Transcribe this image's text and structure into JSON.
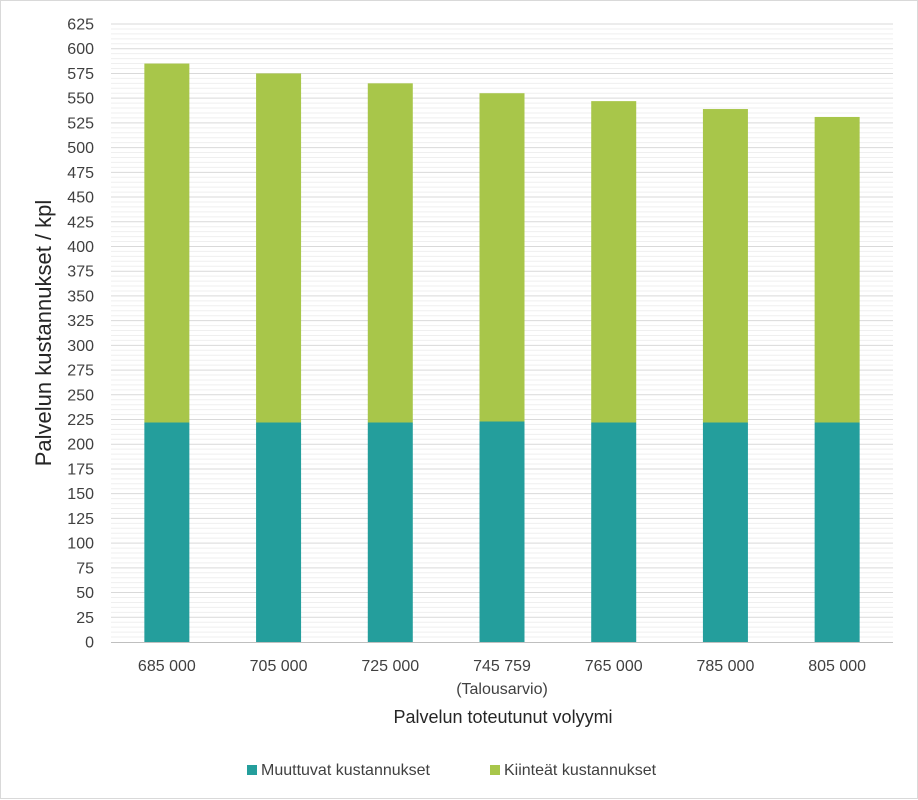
{
  "chart_data": {
    "type": "bar",
    "stacked": true,
    "title": "",
    "xlabel": "Palvelun toteutunut volyymi",
    "ylabel": "Palvelun kustannukset / kpl",
    "categories": [
      "685 000",
      "705 000",
      "725 000",
      "745 759",
      "765 000",
      "785 000",
      "805 000"
    ],
    "category_sublabels": [
      "",
      "",
      "",
      "(Talousarvio)",
      "",
      "",
      ""
    ],
    "ylim": [
      0,
      625
    ],
    "ytick_step": 25,
    "yticks": [
      "0",
      "25",
      "50",
      "75",
      "100",
      "125",
      "150",
      "175",
      "200",
      "225",
      "250",
      "275",
      "300",
      "325",
      "350",
      "375",
      "400",
      "425",
      "450",
      "475",
      "500",
      "525",
      "550",
      "575",
      "600",
      "625"
    ],
    "grid": true,
    "legend_position": "bottom",
    "series": [
      {
        "name": "Muuttuvat kustannukset",
        "color": "#249e9c",
        "values": [
          222,
          222,
          222,
          223,
          222,
          222,
          222
        ]
      },
      {
        "name": "Kiinteät kustannukset",
        "color": "#a8c64a",
        "values": [
          363,
          353,
          343,
          332,
          325,
          317,
          309
        ]
      }
    ]
  }
}
